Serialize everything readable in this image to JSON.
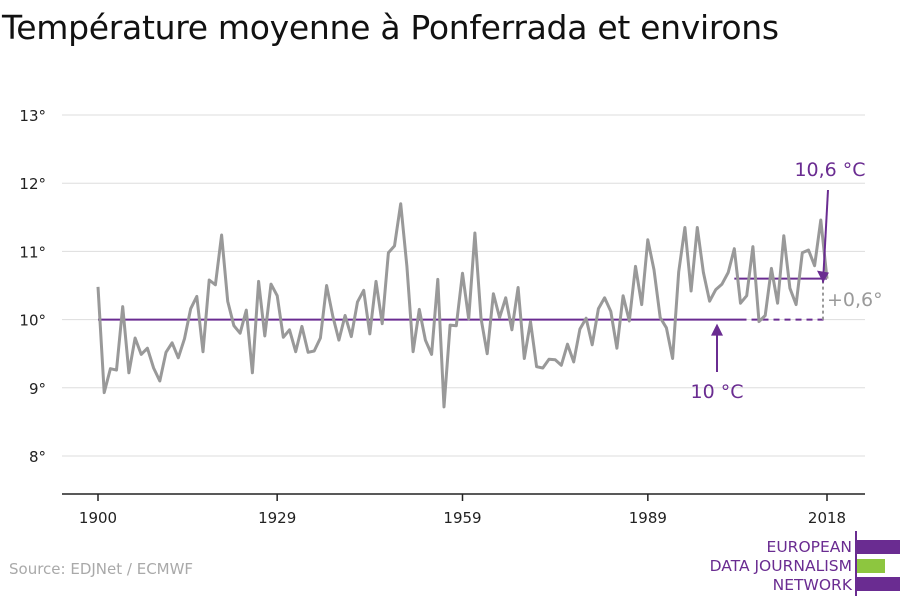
{
  "title": "Température moyenne à Ponferrada et environs",
  "source": "Source: EDJNet / ECMWF",
  "logo": {
    "lines": [
      "EUROPEAN",
      "DATA JOURNALISM",
      "NETWORK"
    ],
    "colors": {
      "purple": "#6a2c91",
      "green": "#8dc63f"
    }
  },
  "colors": {
    "series": "#999999",
    "baseline": "#6a2c91",
    "grid": "#dddddd",
    "axis": "#222222",
    "annotation_gray": "#9a9a9a"
  },
  "chart_data": {
    "type": "line",
    "title": "Température moyenne à Ponferrada et environs",
    "xlabel": "",
    "ylabel": "",
    "xlim": [
      1900,
      2018
    ],
    "ylim": [
      8,
      13
    ],
    "x_ticks": [
      1900,
      1929,
      1959,
      1989,
      2018
    ],
    "y_ticks": [
      {
        "value": 8,
        "label": "8°"
      },
      {
        "value": 9,
        "label": "9°"
      },
      {
        "value": 10,
        "label": "10°"
      },
      {
        "value": 11,
        "label": "11°"
      },
      {
        "value": 12,
        "label": "12°"
      },
      {
        "value": 13,
        "label": "13°"
      }
    ],
    "grid": true,
    "series": [
      {
        "values": [
          [
            1900,
            10.48
          ],
          [
            1901,
            8.93
          ],
          [
            1902,
            9.28
          ],
          [
            1903,
            9.26
          ],
          [
            1904,
            10.19
          ],
          [
            1905,
            9.22
          ],
          [
            1906,
            9.73
          ],
          [
            1907,
            9.49
          ],
          [
            1908,
            9.58
          ],
          [
            1909,
            9.29
          ],
          [
            1910,
            9.1
          ],
          [
            1911,
            9.52
          ],
          [
            1912,
            9.66
          ],
          [
            1913,
            9.44
          ],
          [
            1914,
            9.72
          ],
          [
            1915,
            10.16
          ],
          [
            1916,
            10.34
          ],
          [
            1917,
            9.53
          ],
          [
            1918,
            10.58
          ],
          [
            1919,
            10.51
          ],
          [
            1920,
            11.24
          ],
          [
            1921,
            10.27
          ],
          [
            1922,
            9.91
          ],
          [
            1923,
            9.8
          ],
          [
            1924,
            10.14
          ],
          [
            1925,
            9.22
          ],
          [
            1926,
            10.56
          ],
          [
            1927,
            9.76
          ],
          [
            1928,
            10.52
          ],
          [
            1929,
            10.35
          ],
          [
            1930,
            9.74
          ],
          [
            1931,
            9.85
          ],
          [
            1932,
            9.53
          ],
          [
            1933,
            9.9
          ],
          [
            1934,
            9.52
          ],
          [
            1935,
            9.54
          ],
          [
            1936,
            9.73
          ],
          [
            1937,
            10.5
          ],
          [
            1938,
            10.05
          ],
          [
            1939,
            9.7
          ],
          [
            1940,
            10.06
          ],
          [
            1941,
            9.75
          ],
          [
            1942,
            10.26
          ],
          [
            1943,
            10.43
          ],
          [
            1944,
            9.79
          ],
          [
            1945,
            10.56
          ],
          [
            1946,
            9.94
          ],
          [
            1947,
            10.98
          ],
          [
            1948,
            11.08
          ],
          [
            1949,
            11.7
          ],
          [
            1950,
            10.78
          ],
          [
            1951,
            9.53
          ],
          [
            1952,
            10.15
          ],
          [
            1953,
            9.7
          ],
          [
            1954,
            9.49
          ],
          [
            1955,
            10.59
          ],
          [
            1956,
            8.72
          ],
          [
            1957,
            9.92
          ],
          [
            1958,
            9.91
          ],
          [
            1959,
            10.68
          ],
          [
            1960,
            10.01
          ],
          [
            1961,
            11.27
          ],
          [
            1962,
            10.02
          ],
          [
            1963,
            9.5
          ],
          [
            1964,
            10.38
          ],
          [
            1965,
            10.03
          ],
          [
            1966,
            10.32
          ],
          [
            1967,
            9.85
          ],
          [
            1968,
            10.47
          ],
          [
            1969,
            9.43
          ],
          [
            1970,
            9.97
          ],
          [
            1971,
            9.31
          ],
          [
            1972,
            9.29
          ],
          [
            1973,
            9.42
          ],
          [
            1974,
            9.41
          ],
          [
            1975,
            9.33
          ],
          [
            1976,
            9.64
          ],
          [
            1977,
            9.38
          ],
          [
            1978,
            9.86
          ],
          [
            1979,
            10.02
          ],
          [
            1980,
            9.63
          ],
          [
            1981,
            10.16
          ],
          [
            1982,
            10.32
          ],
          [
            1983,
            10.12
          ],
          [
            1984,
            9.58
          ],
          [
            1985,
            10.35
          ],
          [
            1986,
            9.98
          ],
          [
            1987,
            10.78
          ],
          [
            1988,
            10.22
          ],
          [
            1989,
            11.17
          ],
          [
            1990,
            10.73
          ],
          [
            1991,
            10.03
          ],
          [
            1992,
            9.88
          ],
          [
            1993,
            9.43
          ],
          [
            1994,
            10.7
          ],
          [
            1995,
            11.35
          ],
          [
            1996,
            10.42
          ],
          [
            1997,
            11.35
          ],
          [
            1998,
            10.69
          ],
          [
            1999,
            10.27
          ],
          [
            2000,
            10.44
          ],
          [
            2001,
            10.52
          ],
          [
            2002,
            10.69
          ],
          [
            2003,
            11.04
          ],
          [
            2004,
            10.24
          ],
          [
            2005,
            10.35
          ],
          [
            2006,
            11.07
          ],
          [
            2007,
            9.97
          ],
          [
            2008,
            10.06
          ],
          [
            2009,
            10.75
          ],
          [
            2010,
            10.24
          ],
          [
            2011,
            11.23
          ],
          [
            2012,
            10.46
          ],
          [
            2013,
            10.22
          ],
          [
            2014,
            10.98
          ],
          [
            2015,
            11.02
          ],
          [
            2016,
            10.79
          ],
          [
            2017,
            11.46
          ],
          [
            2018,
            10.6
          ]
        ]
      }
    ],
    "baseline": {
      "value": 10.0,
      "from": 1900,
      "to": 2018,
      "solid_to": 2004
    },
    "recent_average": {
      "value": 10.6,
      "from": 2003,
      "to": 2018
    },
    "annotations": {
      "recent": "10,6 °C",
      "baseline": "10 °C",
      "delta": "+0,6°"
    }
  }
}
